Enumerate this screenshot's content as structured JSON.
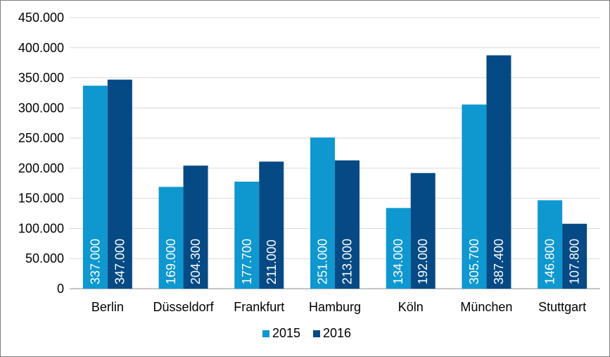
{
  "chart_data": {
    "type": "bar",
    "title": "",
    "xlabel": "",
    "ylabel": "",
    "categories": [
      "Berlin",
      "Düsseldorf",
      "Frankfurt",
      "Hamburg",
      "Köln",
      "München",
      "Stuttgart"
    ],
    "series": [
      {
        "name": "2015",
        "color": "#0f97d0",
        "values": [
          337000,
          169000,
          177700,
          251000,
          134000,
          305700,
          146800
        ],
        "labels": [
          "337.000",
          "169.000",
          "177.700",
          "251.000",
          "134.000",
          "305.700",
          "146.800"
        ]
      },
      {
        "name": "2016",
        "color": "#064a85",
        "values": [
          347000,
          204300,
          211000,
          213000,
          192000,
          387400,
          107800
        ],
        "labels": [
          "347.000",
          "204.300",
          "211.000",
          "213.000",
          "192.000",
          "387.400",
          "107.800"
        ]
      }
    ],
    "ylim": [
      0,
      450000
    ],
    "yticks": [
      0,
      50000,
      100000,
      150000,
      200000,
      250000,
      300000,
      350000,
      400000,
      450000
    ],
    "ytick_labels": [
      "0",
      "50.000",
      "100.000",
      "150.000",
      "200.000",
      "250.000",
      "300.000",
      "350.000",
      "400.000",
      "450.000"
    ],
    "grid": true,
    "legend_position": "bottom",
    "data_labels": "inside-base-vertical"
  }
}
